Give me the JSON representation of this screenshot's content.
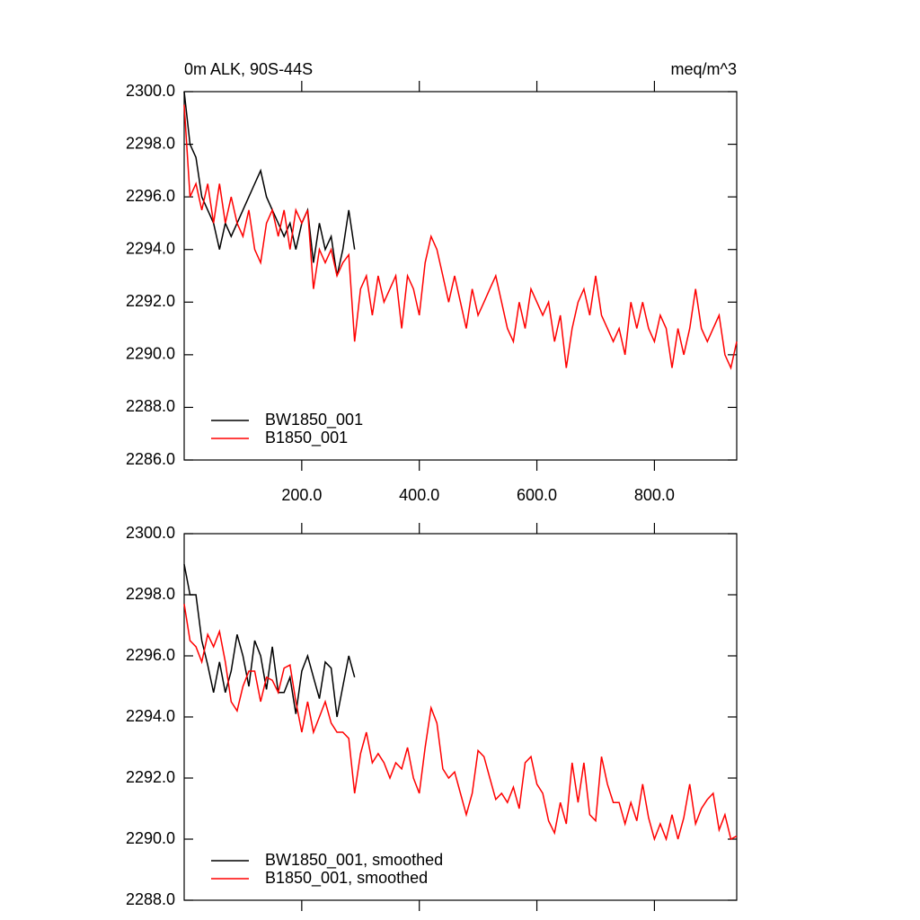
{
  "chart_data": [
    {
      "type": "line",
      "title": "0m ALK, 90S-44S",
      "units": "meq/m^3",
      "legend": "lower-left",
      "xlim": [
        0,
        940
      ],
      "ylim": [
        2286,
        2300
      ],
      "xticks": [
        {
          "value": 200,
          "label": "200.0"
        },
        {
          "value": 400,
          "label": "400.0"
        },
        {
          "value": 600,
          "label": "600.0"
        },
        {
          "value": 800,
          "label": "800.0"
        }
      ],
      "yticks": [
        {
          "value": 2286,
          "label": "2286.0"
        },
        {
          "value": 2288,
          "label": "2288.0"
        },
        {
          "value": 2290,
          "label": "2290.0"
        },
        {
          "value": 2292,
          "label": "2292.0"
        },
        {
          "value": 2294,
          "label": "2294.0"
        },
        {
          "value": 2296,
          "label": "2296.0"
        },
        {
          "value": 2298,
          "label": "2298.0"
        },
        {
          "value": 2300,
          "label": "2300.0"
        }
      ],
      "series": [
        {
          "name": "BW1850_001",
          "color": "#000000",
          "x": [
            0,
            10,
            20,
            30,
            40,
            50,
            60,
            70,
            80,
            90,
            100,
            110,
            120,
            130,
            140,
            150,
            160,
            170,
            180,
            190,
            200,
            210,
            220,
            230,
            240,
            250,
            260,
            270,
            280,
            290
          ],
          "values": [
            2300,
            2298,
            2297.5,
            2296,
            2295.5,
            2295,
            2294,
            2295,
            2294.5,
            2295,
            2295.5,
            2296,
            2296.5,
            2297,
            2296,
            2295.5,
            2295,
            2294.5,
            2295,
            2294,
            2295,
            2295.5,
            2293.5,
            2295,
            2294,
            2294.5,
            2293,
            2294,
            2295.5,
            2294
          ]
        },
        {
          "name": "B1850_001",
          "color": "#ff0000",
          "x": [
            0,
            10,
            20,
            30,
            40,
            50,
            60,
            70,
            80,
            90,
            100,
            110,
            120,
            130,
            140,
            150,
            160,
            170,
            180,
            190,
            200,
            210,
            220,
            230,
            240,
            250,
            260,
            270,
            280,
            290,
            300,
            310,
            320,
            330,
            340,
            350,
            360,
            370,
            380,
            390,
            400,
            410,
            420,
            430,
            440,
            450,
            460,
            470,
            480,
            490,
            500,
            510,
            520,
            530,
            540,
            550,
            560,
            570,
            580,
            590,
            600,
            610,
            620,
            630,
            640,
            650,
            660,
            670,
            680,
            690,
            700,
            710,
            720,
            730,
            740,
            750,
            760,
            770,
            780,
            790,
            800,
            810,
            820,
            830,
            840,
            850,
            860,
            870,
            880,
            890,
            900,
            910,
            920,
            930,
            940
          ],
          "values": [
            2299.5,
            2296,
            2296.5,
            2295.5,
            2296.5,
            2295,
            2296.5,
            2295,
            2296,
            2295,
            2294.5,
            2295.5,
            2294,
            2293.5,
            2295,
            2295.5,
            2294.5,
            2295.5,
            2294,
            2295.5,
            2295,
            2295.5,
            2292.5,
            2294,
            2293.5,
            2294,
            2293,
            2293.5,
            2293.8,
            2290.5,
            2292.5,
            2293,
            2291.5,
            2293,
            2292,
            2292.5,
            2293,
            2291,
            2293,
            2292.5,
            2291.5,
            2293.5,
            2294.5,
            2294,
            2293,
            2292,
            2293,
            2292,
            2291,
            2292.5,
            2291.5,
            2292,
            2292.5,
            2293,
            2292,
            2291,
            2290.5,
            2292,
            2291,
            2292.5,
            2292,
            2291.5,
            2292,
            2290.5,
            2291.5,
            2289.5,
            2291,
            2292,
            2292.5,
            2291.5,
            2293,
            2291.5,
            2291,
            2290.5,
            2291,
            2290,
            2292,
            2291,
            2292,
            2291,
            2290.5,
            2291.5,
            2291,
            2289.5,
            2291,
            2290,
            2291,
            2292.5,
            2291,
            2290.5,
            2291,
            2291.5,
            2290,
            2289.5,
            2290.5
          ]
        }
      ]
    },
    {
      "type": "line",
      "legend": "lower-left",
      "xlim": [
        0,
        940
      ],
      "ylim": [
        2288,
        2300
      ],
      "xticks": [
        200,
        400,
        600,
        800
      ],
      "yticks": [
        {
          "value": 2288,
          "label": "2288.0"
        },
        {
          "value": 2290,
          "label": "2290.0"
        },
        {
          "value": 2292,
          "label": "2292.0"
        },
        {
          "value": 2294,
          "label": "2294.0"
        },
        {
          "value": 2296,
          "label": "2296.0"
        },
        {
          "value": 2298,
          "label": "2298.0"
        },
        {
          "value": 2300,
          "label": "2300.0"
        }
      ],
      "series": [
        {
          "name": "BW1850_001, smoothed",
          "color": "#000000",
          "x": [
            0,
            10,
            20,
            30,
            40,
            50,
            60,
            70,
            80,
            90,
            100,
            110,
            120,
            130,
            140,
            150,
            160,
            170,
            180,
            190,
            200,
            210,
            220,
            230,
            240,
            250,
            260,
            270,
            280,
            290
          ],
          "values": [
            2299,
            2298,
            2298,
            2296.5,
            2295.7,
            2294.8,
            2295.8,
            2294.8,
            2295.5,
            2296.7,
            2296,
            2295,
            2296.5,
            2296,
            2294.9,
            2296.3,
            2294.8,
            2294.8,
            2295.3,
            2294.1,
            2295.5,
            2296,
            2295.3,
            2294.6,
            2295.8,
            2295.6,
            2294,
            2295,
            2296,
            2295.3
          ]
        },
        {
          "name": "B1850_001, smoothed",
          "color": "#ff0000",
          "x": [
            0,
            10,
            20,
            30,
            40,
            50,
            60,
            70,
            80,
            90,
            100,
            110,
            120,
            130,
            140,
            150,
            160,
            170,
            180,
            190,
            200,
            210,
            220,
            230,
            240,
            250,
            260,
            270,
            280,
            290,
            300,
            310,
            320,
            330,
            340,
            350,
            360,
            370,
            380,
            390,
            400,
            410,
            420,
            430,
            440,
            450,
            460,
            470,
            480,
            490,
            500,
            510,
            520,
            530,
            540,
            550,
            560,
            570,
            580,
            590,
            600,
            610,
            620,
            630,
            640,
            650,
            660,
            670,
            680,
            690,
            700,
            710,
            720,
            730,
            740,
            750,
            760,
            770,
            780,
            790,
            800,
            810,
            820,
            830,
            840,
            850,
            860,
            870,
            880,
            890,
            900,
            910,
            920,
            930,
            940
          ],
          "values": [
            2297.7,
            2296.5,
            2296.3,
            2295.8,
            2296.7,
            2296.3,
            2296.8,
            2295.8,
            2294.5,
            2294.2,
            2295,
            2295.5,
            2295.5,
            2294.5,
            2295.3,
            2295.2,
            2294.8,
            2295.6,
            2295.7,
            2294.5,
            2293.5,
            2294.5,
            2293.5,
            2294,
            2294.5,
            2293.8,
            2293.5,
            2293.5,
            2293.3,
            2291.5,
            2292.8,
            2293.5,
            2292.5,
            2292.8,
            2292.5,
            2292,
            2292.5,
            2292.3,
            2293,
            2292,
            2291.5,
            2293,
            2294.3,
            2293.8,
            2292.3,
            2292,
            2292.2,
            2291.5,
            2290.8,
            2291.5,
            2292.9,
            2292.7,
            2292,
            2291.3,
            2291.5,
            2291.2,
            2291.7,
            2291,
            2292.5,
            2292.7,
            2291.8,
            2291.5,
            2290.6,
            2290.2,
            2291.2,
            2290.5,
            2292.5,
            2291.2,
            2292.5,
            2290.8,
            2290.6,
            2292.7,
            2291.8,
            2291.2,
            2291.2,
            2290.5,
            2291.2,
            2290.6,
            2291.8,
            2290.7,
            2290,
            2290.5,
            2290,
            2290.8,
            2290,
            2290.7,
            2291.8,
            2290.5,
            2291,
            2291.3,
            2291.5,
            2290.3,
            2290.8,
            2290,
            2290.1
          ]
        }
      ]
    }
  ]
}
